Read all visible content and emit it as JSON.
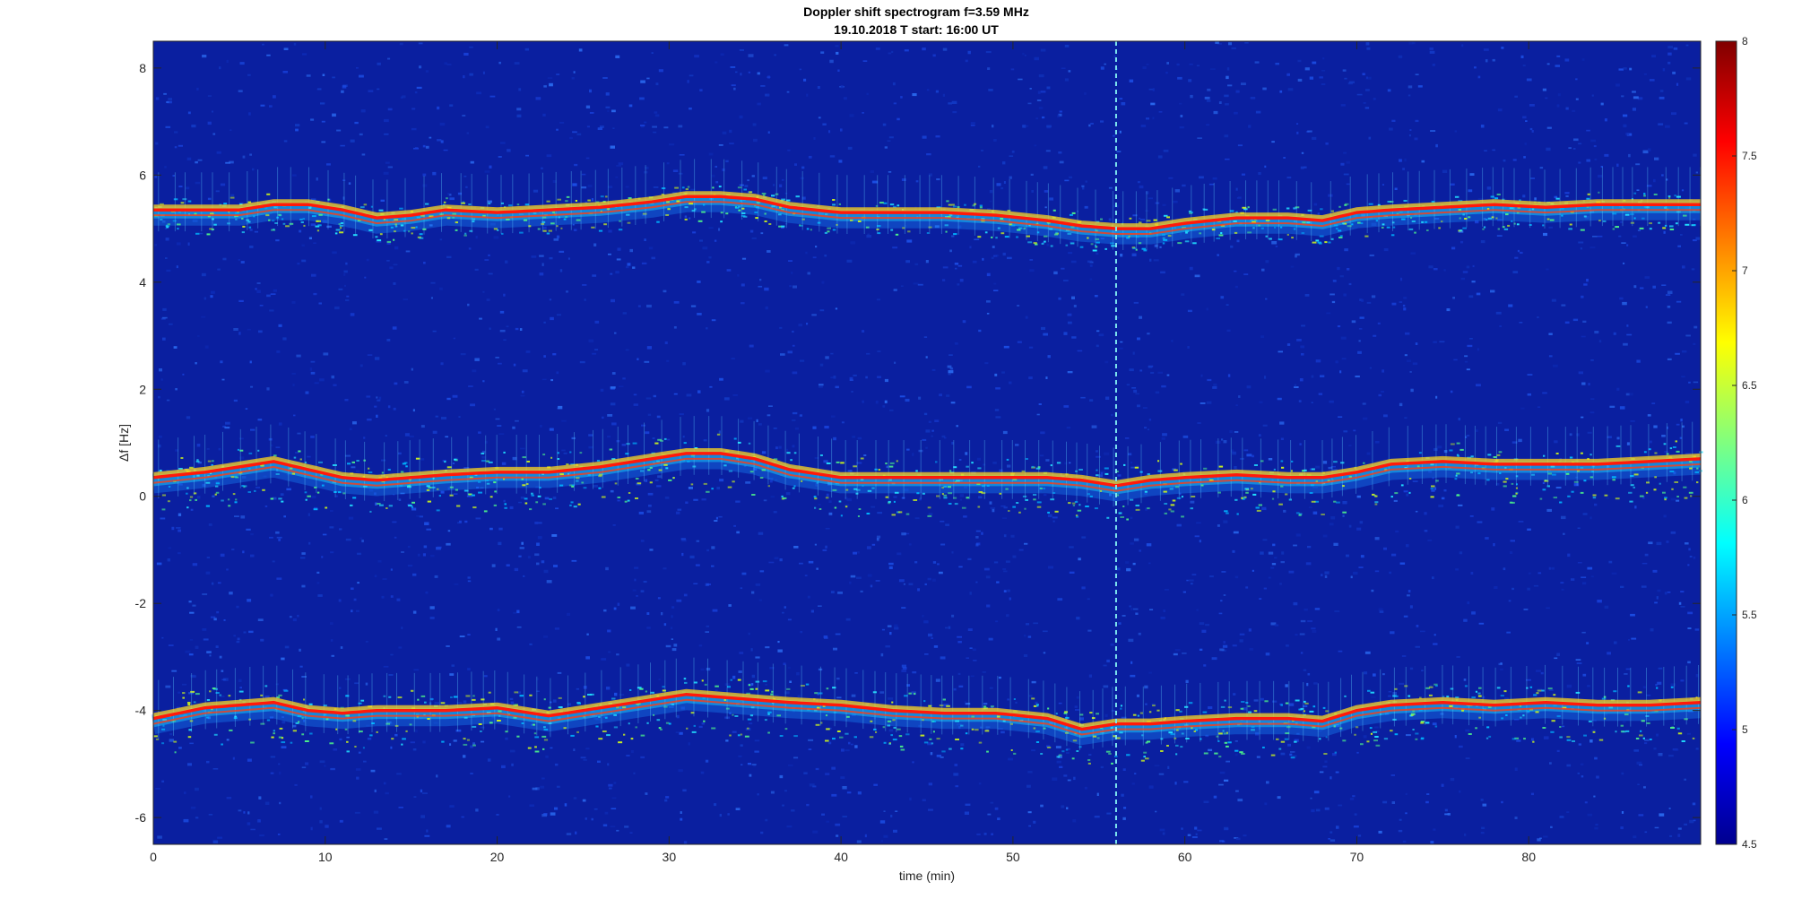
{
  "chart_data": {
    "type": "heatmap",
    "title": "Doppler shift spectrogram f=3.59 MHz",
    "subtitle": "19.10.2018   T start: 16:00 UT",
    "xlabel": "time (min)",
    "ylabel": "Δf [Hz]",
    "xlim": [
      0,
      90
    ],
    "ylim": [
      -6.5,
      8.5
    ],
    "xticks": [
      0,
      10,
      20,
      30,
      40,
      50,
      60,
      70,
      80
    ],
    "yticks": [
      -6,
      -4,
      -2,
      0,
      2,
      4,
      6,
      8
    ],
    "colorbar": {
      "colormap": "jet",
      "clim": [
        4.5,
        8
      ],
      "ticks": [
        4.5,
        5,
        5.5,
        6,
        6.5,
        7,
        7.5,
        8
      ]
    },
    "grid": false,
    "dashed_marker_x": 56,
    "series": [
      {
        "x": [
          0,
          3,
          5,
          7,
          9,
          11,
          13,
          15,
          17,
          20,
          23,
          26,
          29,
          31,
          33,
          35,
          37,
          40,
          43,
          46,
          49,
          52,
          54,
          56,
          58,
          60,
          63,
          66,
          68,
          70,
          72,
          75,
          78,
          81,
          84,
          87,
          90
        ],
        "values": [
          5.35,
          5.35,
          5.35,
          5.45,
          5.45,
          5.35,
          5.2,
          5.25,
          5.35,
          5.3,
          5.35,
          5.4,
          5.5,
          5.6,
          5.6,
          5.55,
          5.4,
          5.3,
          5.3,
          5.3,
          5.25,
          5.15,
          5.05,
          5.0,
          5.0,
          5.1,
          5.2,
          5.2,
          5.15,
          5.3,
          5.35,
          5.4,
          5.45,
          5.4,
          5.45,
          5.45,
          5.45
        ]
      },
      {
        "x": [
          0,
          3,
          5,
          7,
          9,
          11,
          13,
          15,
          17,
          20,
          23,
          26,
          29,
          31,
          33,
          35,
          37,
          40,
          43,
          46,
          49,
          52,
          54,
          56,
          58,
          60,
          63,
          66,
          68,
          70,
          72,
          75,
          78,
          81,
          84,
          87,
          90
        ],
        "values": [
          0.35,
          0.45,
          0.55,
          0.65,
          0.5,
          0.35,
          0.3,
          0.35,
          0.4,
          0.45,
          0.45,
          0.55,
          0.7,
          0.8,
          0.8,
          0.7,
          0.5,
          0.35,
          0.35,
          0.35,
          0.35,
          0.35,
          0.3,
          0.2,
          0.3,
          0.35,
          0.4,
          0.35,
          0.35,
          0.45,
          0.6,
          0.65,
          0.6,
          0.6,
          0.6,
          0.65,
          0.7
        ]
      },
      {
        "x": [
          0,
          3,
          5,
          7,
          9,
          11,
          13,
          15,
          17,
          20,
          23,
          26,
          29,
          31,
          33,
          35,
          37,
          40,
          43,
          46,
          49,
          52,
          54,
          56,
          58,
          60,
          63,
          66,
          68,
          70,
          72,
          75,
          78,
          81,
          84,
          87,
          90
        ],
        "values": [
          -4.15,
          -3.95,
          -3.9,
          -3.85,
          -4.0,
          -4.05,
          -4.0,
          -4.0,
          -4.0,
          -3.95,
          -4.1,
          -3.95,
          -3.8,
          -3.7,
          -3.75,
          -3.8,
          -3.85,
          -3.9,
          -4.0,
          -4.05,
          -4.05,
          -4.15,
          -4.35,
          -4.25,
          -4.25,
          -4.2,
          -4.15,
          -4.15,
          -4.2,
          -4.0,
          -3.9,
          -3.85,
          -3.9,
          -3.85,
          -3.9,
          -3.9,
          -3.85
        ]
      }
    ]
  }
}
